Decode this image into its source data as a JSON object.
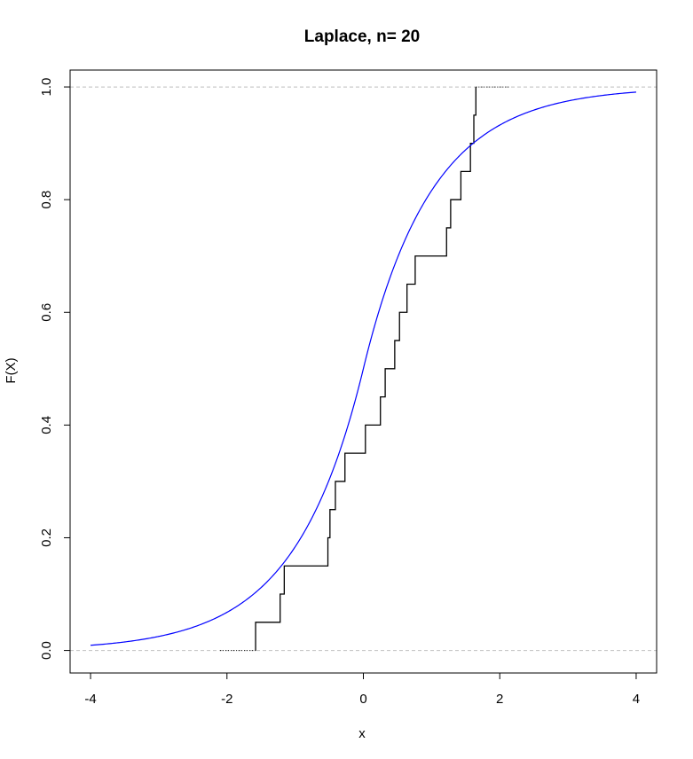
{
  "chart_data": {
    "type": "line",
    "title": "Laplace, n= 20",
    "xlabel": "x",
    "ylabel": "F(X)",
    "xlim": [
      -4.3,
      4.3
    ],
    "ylim": [
      -0.04,
      1.03
    ],
    "x_ticks": [
      -4,
      -2,
      0,
      2,
      4
    ],
    "x_tick_labels": [
      "-4",
      "-2",
      "0",
      "2",
      "4"
    ],
    "y_ticks": [
      0.0,
      0.2,
      0.4,
      0.6,
      0.8,
      1.0
    ],
    "y_tick_labels": [
      "0.0",
      "0.2",
      "0.4",
      "0.6",
      "0.8",
      "1.0"
    ],
    "grid": false,
    "reference_lines": [
      0,
      1
    ],
    "colors": {
      "ecdf": "#000000",
      "theoretical": "#0000ff",
      "reference": "#bebebe"
    },
    "series": [
      {
        "kind": "ecdf-step",
        "x": [
          -1.58,
          -1.22,
          -1.16,
          -0.52,
          -0.49,
          -0.41,
          -0.27,
          0.03,
          0.25,
          0.32,
          0.46,
          0.53,
          0.64,
          0.76,
          1.22,
          1.28,
          1.43,
          1.57,
          1.62,
          1.65
        ],
        "left_end": -2.1,
        "right_end": 2.15
      },
      {
        "kind": "laplace-cdf",
        "location": 0,
        "scale": 1,
        "x_range": [
          -4,
          4
        ]
      }
    ]
  }
}
